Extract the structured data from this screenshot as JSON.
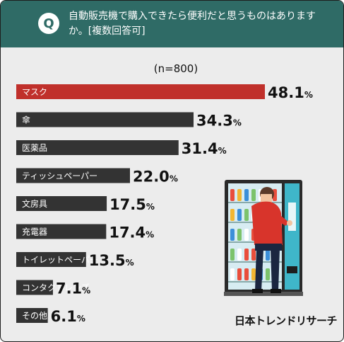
{
  "header": {
    "badge": "Q",
    "question": "自動販売機で購入できたら便利だと思うものはありますか。[複数回答可]"
  },
  "brand": "日本トレンドリサーチ",
  "colors": {
    "header_bg": "#2f6b66",
    "top_bar": "#c0302b",
    "bar": "#333333"
  },
  "chart_data": {
    "type": "bar",
    "orientation": "horizontal",
    "subtitle": "(n=800)",
    "unit": "%",
    "categories": [
      "マスク",
      "傘",
      "医薬品",
      "ティッシュペーパー",
      "文房具",
      "充電器",
      "トイレットペーパー",
      "コンタクトレンズ",
      "その他"
    ],
    "values": [
      48.1,
      34.3,
      31.4,
      22.0,
      17.5,
      17.4,
      13.5,
      7.1,
      6.1
    ],
    "value_labels": [
      "48.1",
      "34.3",
      "31.4",
      "22.0",
      "17.5",
      "17.4",
      "13.5",
      "7.1",
      "6.1"
    ],
    "xlim": [
      0,
      50
    ],
    "grid": false,
    "legend": "none"
  }
}
